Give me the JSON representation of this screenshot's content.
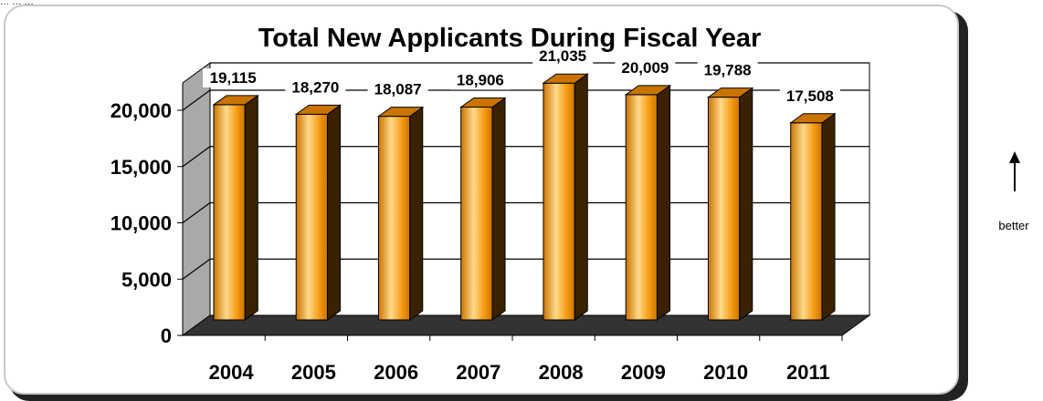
{
  "page": {
    "top_text": "... ... ...",
    "side_note": "better"
  },
  "colors": {
    "bar_front": "#f59a12",
    "bar_highlight": "#ffd98a",
    "bar_side": "#3a2200",
    "bar_top": "#c97400",
    "floor": "#333333",
    "back_wall": "#ffffff",
    "left_wall": "#a9a9a9"
  },
  "chart_data": {
    "type": "bar",
    "title": "Total New Applicants During Fiscal Year",
    "xlabel": "",
    "ylabel": "",
    "categories": [
      "2004",
      "2005",
      "2006",
      "2007",
      "2008",
      "2009",
      "2010",
      "2011"
    ],
    "values": [
      19115,
      18270,
      18087,
      18906,
      21035,
      20009,
      19788,
      17508
    ],
    "data_labels": [
      "19,115",
      "18,270",
      "18,087",
      "18,906",
      "21,035",
      "20,009",
      "19,788",
      "17,508"
    ],
    "ylim": [
      0,
      20000
    ],
    "yticks": [
      0,
      5000,
      10000,
      15000,
      20000
    ],
    "ytick_labels": [
      "0",
      "5,000",
      "10,000",
      "15,000",
      "20,000"
    ],
    "grid": true,
    "legend": "none",
    "style": "3d"
  }
}
